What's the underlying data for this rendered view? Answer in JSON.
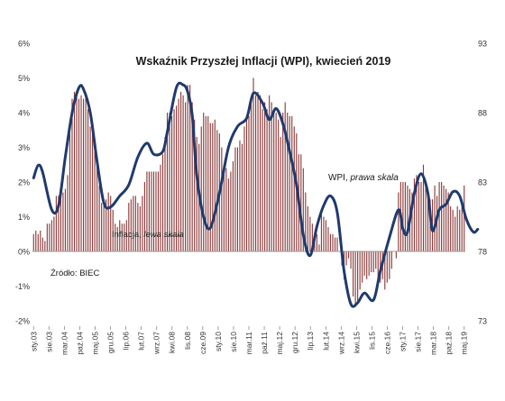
{
  "chart_data": {
    "type": "bar+line",
    "title": "Wskaźnik Przyszłej Inflacji (WPI), kwiecień 2019",
    "left_axis": {
      "ticks": [
        "6%",
        "5%",
        "4%",
        "3%",
        "2%",
        "1%",
        "0%",
        "-1%",
        "-2%"
      ],
      "ylim": [
        -2,
        6
      ],
      "unit": "%"
    },
    "right_axis": {
      "ticks": [
        "93",
        "88",
        "83",
        "78",
        "73"
      ],
      "ylim": [
        73,
        93
      ]
    },
    "x_ticks": [
      "sty.03",
      "sie.03",
      "mar.04",
      "paź.04",
      "maj.05",
      "gru.05",
      "lip.06",
      "lut.07",
      "wrz.07",
      "kwi.08",
      "lis.08",
      "cze.09",
      "sty.10",
      "sie.10",
      "mar.11",
      "paź.11",
      "maj.12",
      "gru.12",
      "lip.13",
      "lut.14",
      "wrz.14",
      "kwi.15",
      "lis.15",
      "cze.16",
      "sty.17",
      "sie.17",
      "mar.18",
      "paź.18",
      "maj.19"
    ],
    "annotations": {
      "wpi_label_prefix": "WPI, ",
      "wpi_label_italic": "prawa skala",
      "inflation_label_prefix": "Inflacja, ",
      "inflation_label_italic": "lewa skala",
      "source": "Źródło: BIEC"
    },
    "series": [
      {
        "name": "Inflacja",
        "axis": "left",
        "style": "bars",
        "color": "#8b3a3a",
        "values": [
          0.5,
          0.6,
          0.5,
          0.6,
          0.4,
          0.3,
          0.8,
          0.8,
          0.9,
          1.0,
          1.6,
          1.6,
          1.7,
          1.7,
          1.8,
          2.2,
          3.4,
          4.4,
          4.6,
          4.5,
          4.4,
          4.5,
          4.4,
          4.5,
          4.1,
          3.6,
          3.4,
          3.1,
          2.5,
          1.9,
          1.4,
          1.4,
          1.5,
          1.7,
          1.6,
          1.2,
          0.8,
          0.7,
          0.9,
          0.8,
          0.8,
          0.9,
          1.4,
          1.5,
          1.6,
          1.6,
          1.4,
          1.3,
          1.6,
          2.0,
          2.3,
          2.3,
          2.3,
          2.3,
          2.3,
          2.3,
          2.5,
          2.8,
          3.3,
          4.0,
          4.0,
          3.9,
          4.1,
          4.2,
          4.4,
          4.6,
          4.5,
          4.3,
          4.8,
          4.8,
          4.3,
          3.8,
          3.3,
          3.1,
          3.6,
          4.0,
          3.9,
          3.9,
          3.7,
          3.7,
          3.8,
          3.5,
          3.4,
          3.0,
          2.5,
          2.4,
          2.1,
          2.3,
          2.6,
          3.0,
          3.0,
          3.2,
          3.1,
          3.6,
          3.8,
          3.9,
          4.3,
          5.0,
          4.5,
          4.6,
          4.5,
          4.1,
          4.3,
          4.1,
          4.5,
          4.3,
          4.0,
          4.0,
          3.8,
          3.3,
          4.0,
          4.3,
          4.0,
          3.9,
          3.9,
          3.6,
          3.4,
          2.8,
          2.8,
          2.4,
          1.7,
          1.3,
          1.0,
          0.8,
          0.5,
          0.5,
          0.2,
          1.1,
          1.0,
          0.9,
          0.7,
          0.5,
          0.5,
          0.4,
          0.4,
          0.0,
          -0.4,
          -0.8,
          -0.4,
          -0.2,
          -0.5,
          -1.3,
          -1.6,
          -1.5,
          -1.1,
          -0.9,
          -0.7,
          -0.8,
          -0.7,
          -0.6,
          -0.6,
          -0.5,
          -0.8,
          -0.9,
          -0.8,
          -1.1,
          -0.9,
          -0.8,
          -0.5,
          0.0,
          -0.2,
          1.7,
          2.0,
          2.0,
          2.0,
          1.9,
          1.8,
          1.7,
          2.1,
          2.2,
          2.0,
          2.0,
          2.5,
          1.9,
          1.6,
          1.5,
          1.5,
          1.9,
          1.6,
          2.0,
          2.0,
          1.9,
          1.8,
          1.7,
          1.3,
          1.2,
          1.0,
          1.3,
          1.2,
          1.5,
          1.9
        ]
      },
      {
        "name": "WPI",
        "axis": "right",
        "style": "line",
        "color": "#1f3a6e",
        "x_index": [
          0,
          2,
          4,
          8,
          11,
          14,
          17,
          20,
          22,
          25,
          28,
          31,
          34,
          38,
          42,
          46,
          50,
          53,
          57,
          59,
          63,
          66,
          68,
          70,
          72,
          75,
          78,
          82,
          86,
          90,
          94,
          97,
          101,
          104,
          107,
          110,
          113,
          116,
          119,
          122,
          125,
          128,
          131,
          134,
          137,
          140,
          143,
          146,
          150,
          153,
          157,
          161,
          163,
          165,
          168,
          171,
          174,
          176,
          179,
          182,
          185,
          188,
          191,
          194,
          196
        ],
        "values": [
          83.3,
          84.2,
          83.7,
          81.0,
          81.3,
          84.8,
          88.0,
          89.8,
          89.7,
          88.0,
          84.5,
          81.5,
          81.2,
          82.0,
          82.8,
          84.8,
          85.8,
          85.0,
          85.2,
          86.6,
          89.8,
          90.0,
          89.5,
          87.8,
          83.5,
          80.5,
          79.7,
          82.2,
          85.5,
          87.0,
          87.6,
          89.4,
          88.7,
          87.5,
          88.3,
          87.2,
          85.2,
          82.8,
          79.2,
          77.7,
          79.8,
          81.3,
          82.0,
          80.8,
          76.6,
          74.2,
          74.3,
          75.0,
          74.5,
          76.6,
          79.0,
          81.0,
          79.6,
          79.4,
          82.2,
          83.6,
          82.2,
          79.5,
          81.0,
          81.4,
          82.3,
          82.0,
          80.3,
          79.4,
          79.6
        ]
      }
    ]
  }
}
